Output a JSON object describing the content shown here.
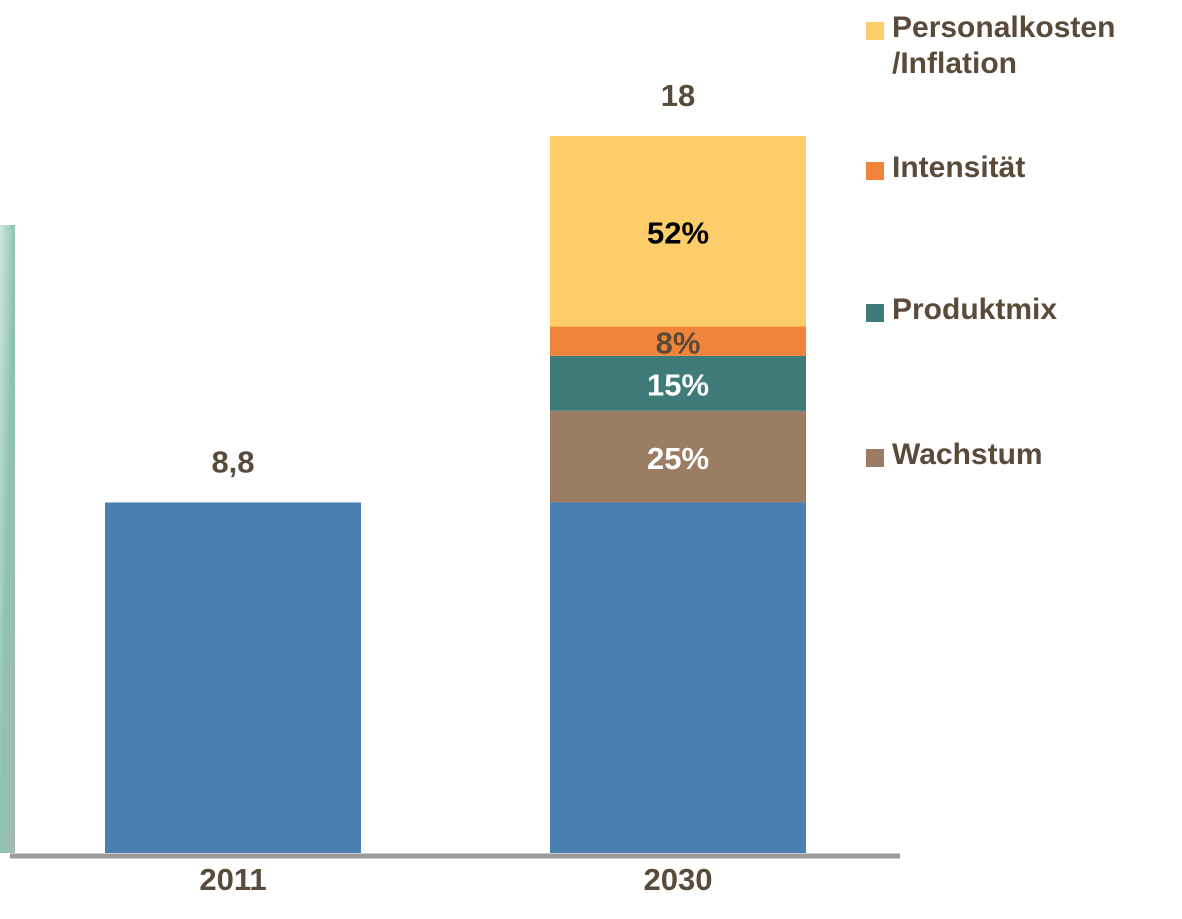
{
  "chart_data": {
    "type": "bar",
    "categories": [
      "2011",
      "2030"
    ],
    "base_color": "#4a7fb1",
    "base_values": [
      8.8,
      8.8
    ],
    "totals": [
      8.8,
      18
    ],
    "total_labels": [
      "8,8",
      "18"
    ],
    "series": [
      {
        "name": "Wachstum",
        "color": "#9b7d63",
        "label_color": "#ffffff",
        "values": [
          null,
          25
        ],
        "value_labels": [
          null,
          "25%"
        ]
      },
      {
        "name": "Produktmix",
        "color": "#3e7b79",
        "label_color": "#ffffff",
        "values": [
          null,
          15
        ],
        "value_labels": [
          null,
          "15%"
        ]
      },
      {
        "name": "Intensität",
        "color": "#f0843a",
        "label_color": "#5c4a3a",
        "values": [
          null,
          8
        ],
        "value_labels": [
          null,
          "8%"
        ]
      },
      {
        "name": "Personalkosten /Inflation",
        "color": "#fdcd6a",
        "label_color": "#000000",
        "values": [
          null,
          52
        ],
        "value_labels": [
          null,
          "52%"
        ]
      }
    ]
  }
}
